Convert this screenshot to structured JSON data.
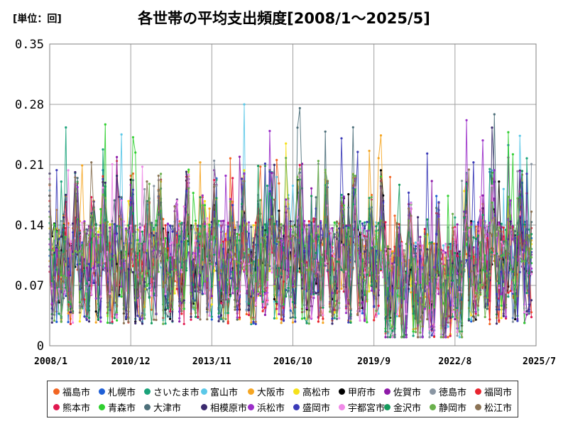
{
  "chart_data": {
    "type": "line",
    "title": "各世帯の平均支出頻度[2008/1～2025/5]",
    "unit_label": "[単位：回]",
    "x_range": [
      "2008/1",
      "2025/7"
    ],
    "x_ticks": [
      "2008/1",
      "2010/12",
      "2013/11",
      "2016/10",
      "2019/9",
      "2022/8",
      "2025/7"
    ],
    "y_ticks": [
      "0",
      "0.07",
      "0.14",
      "0.21",
      "0.28",
      "0.35"
    ],
    "ylim": [
      0,
      0.35
    ],
    "grid": true,
    "legend_position": "bottom",
    "series": [
      {
        "name": "福島市",
        "color": "#f26522"
      },
      {
        "name": "札幌市",
        "color": "#1f5fd6"
      },
      {
        "name": "さいたま市",
        "color": "#1aa37a"
      },
      {
        "name": "富山市",
        "color": "#5bc8e8"
      },
      {
        "name": "大阪市",
        "color": "#f5a623"
      },
      {
        "name": "高松市",
        "color": "#f5e11b"
      },
      {
        "name": "甲府市",
        "color": "#000000"
      },
      {
        "name": "佐賀市",
        "color": "#8e1aa8"
      },
      {
        "name": "徳島市",
        "color": "#8a96a3"
      },
      {
        "name": "福岡市",
        "color": "#e8242e"
      },
      {
        "name": "熊本市",
        "color": "#e0184f"
      },
      {
        "name": "青森市",
        "color": "#2fcf2f"
      },
      {
        "name": "大津市",
        "color": "#4d6f7a"
      },
      {
        "name": "相模原市",
        "color": "#3a2a6e"
      },
      {
        "name": "浜松市",
        "color": "#9b2fc9"
      },
      {
        "name": "盛岡市",
        "color": "#3b3bb8"
      },
      {
        "name": "宇都宮市",
        "color": "#f08ae8"
      },
      {
        "name": "金沢市",
        "color": "#159a5c"
      },
      {
        "name": "静岡市",
        "color": "#6ab04c"
      },
      {
        "name": "松江市",
        "color": "#8b7355"
      }
    ]
  }
}
